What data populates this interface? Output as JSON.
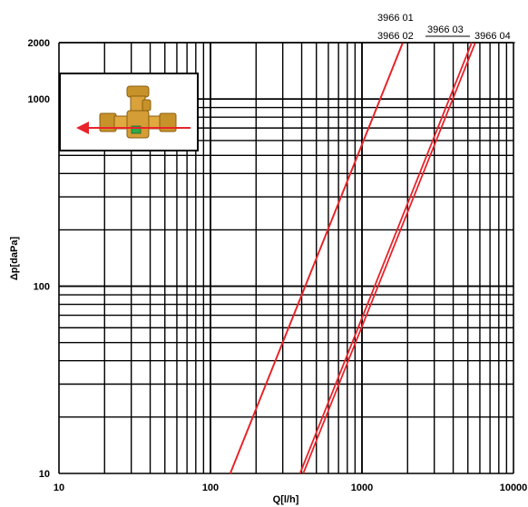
{
  "chart_data": {
    "type": "line",
    "title": "",
    "xlabel": "Q[l/h]",
    "ylabel": "Δp[daPa]",
    "xscale": "log",
    "yscale": "log",
    "xlim": [
      10,
      10000
    ],
    "ylim": [
      10,
      2000
    ],
    "grid": true,
    "line_color": "#e8232a",
    "x_ticks": [
      {
        "value": 10,
        "label": "10"
      },
      {
        "value": 100,
        "label": "100"
      },
      {
        "value": 1000,
        "label": "1000"
      },
      {
        "value": 10000,
        "label": "10000"
      }
    ],
    "y_ticks": [
      {
        "value": 10,
        "label": "10"
      },
      {
        "value": 100,
        "label": "100"
      },
      {
        "value": 1000,
        "label": "1000"
      },
      {
        "value": 2000,
        "label": "2000"
      }
    ],
    "series": [
      {
        "name": "3966 01",
        "x": [
          135,
          1860
        ],
        "y": [
          10,
          2000
        ]
      },
      {
        "name": "3966 02",
        "x": [
          135,
          1860
        ],
        "y": [
          10,
          2000
        ]
      },
      {
        "name": "3966 03",
        "x": [
          390,
          5300
        ],
        "y": [
          10,
          2000
        ]
      },
      {
        "name": "3966 04",
        "x": [
          410,
          5600
        ],
        "y": [
          10,
          2000
        ]
      }
    ],
    "inset": {
      "description": "brass valve with flow arrow",
      "arrow_color": "#e8232a"
    }
  }
}
